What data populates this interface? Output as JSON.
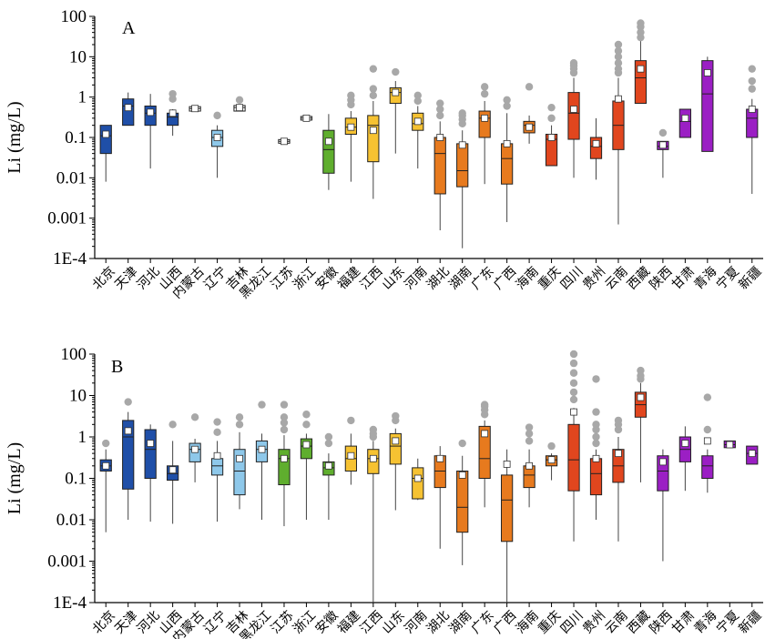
{
  "chart_data": [
    {
      "type": "box",
      "panel_label": "A",
      "ylabel": "Li (mg/L)",
      "yscale": "log",
      "ylim": [
        0.0001,
        100
      ],
      "yticks": [
        "100",
        "10",
        "1",
        "0.1",
        "0.01",
        "0.001",
        "1E-4"
      ],
      "categories": [
        "北京",
        "天津",
        "河北",
        "山西",
        "内蒙古",
        "辽宁",
        "吉林",
        "黑龙江",
        "江苏",
        "浙江",
        "安徽",
        "福建",
        "江西",
        "山东",
        "河南",
        "湖北",
        "湖南",
        "广东",
        "广西",
        "海南",
        "重庆",
        "四川",
        "贵州",
        "云南",
        "西藏",
        "陕西",
        "甘肃",
        "青海",
        "宁夏",
        "新疆"
      ],
      "boxes": [
        {
          "color": "#1f4fa8",
          "min": 0.008,
          "q1": 0.04,
          "median": 0.11,
          "q3": 0.2,
          "max": 0.2,
          "mean": 0.12,
          "outliers": []
        },
        {
          "color": "#1f4fa8",
          "min": 0.2,
          "q1": 0.2,
          "median": 0.6,
          "q3": 0.9,
          "max": 1.3,
          "mean": 0.55,
          "outliers": []
        },
        {
          "color": "#1f4fa8",
          "min": 0.017,
          "q1": 0.2,
          "median": 0.4,
          "q3": 0.6,
          "max": 1.2,
          "mean": 0.42,
          "outliers": []
        },
        {
          "color": "#1f4fa8",
          "min": 0.11,
          "q1": 0.2,
          "median": 0.32,
          "q3": 0.4,
          "max": 0.5,
          "mean": 0.4,
          "outliers": [
            0.9,
            1.2
          ]
        },
        {
          "color": "#ffffff",
          "min": 0.45,
          "q1": 0.45,
          "median": 0.52,
          "q3": 0.58,
          "max": 0.58,
          "mean": 0.52,
          "outliers": []
        },
        {
          "color": "#8ec8ea",
          "min": 0.01,
          "q1": 0.06,
          "median": 0.1,
          "q3": 0.15,
          "max": 0.2,
          "mean": 0.1,
          "outliers": [
            0.35
          ]
        },
        {
          "color": "#ffffff",
          "min": 0.45,
          "q1": 0.45,
          "median": 0.55,
          "q3": 0.62,
          "max": 0.62,
          "mean": 0.55,
          "outliers": [
            0.85
          ]
        },
        {
          "color": null,
          "min": null,
          "q1": null,
          "median": null,
          "q3": null,
          "max": null,
          "mean": null,
          "outliers": []
        },
        {
          "color": "#ffffff",
          "min": 0.075,
          "q1": 0.075,
          "median": 0.08,
          "q3": 0.085,
          "max": 0.085,
          "mean": 0.08,
          "outliers": []
        },
        {
          "color": "#ffffff",
          "min": 0.27,
          "q1": 0.27,
          "median": 0.3,
          "q3": 0.33,
          "max": 0.33,
          "mean": 0.3,
          "outliers": []
        },
        {
          "color": "#5fae2e",
          "min": 0.005,
          "q1": 0.013,
          "median": 0.05,
          "q3": 0.15,
          "max": 0.38,
          "mean": 0.08,
          "outliers": []
        },
        {
          "color": "#f6c232",
          "min": 0.008,
          "q1": 0.12,
          "median": 0.18,
          "q3": 0.3,
          "max": 0.45,
          "mean": 0.18,
          "outliers": [
            0.65,
            0.85,
            1.1
          ]
        },
        {
          "color": "#f6c232",
          "min": 0.003,
          "q1": 0.025,
          "median": 0.2,
          "q3": 0.35,
          "max": 0.8,
          "mean": 0.15,
          "outliers": [
            1.1,
            1.6,
            5
          ]
        },
        {
          "color": "#f6c232",
          "min": 0.04,
          "q1": 0.7,
          "median": 1.3,
          "q3": 1.7,
          "max": 2.5,
          "mean": 1.3,
          "outliers": [
            4.2
          ]
        },
        {
          "color": "#f6c232",
          "min": 0.017,
          "q1": 0.15,
          "median": 0.22,
          "q3": 0.4,
          "max": 0.6,
          "mean": 0.25,
          "outliers": [
            0.8,
            1.1
          ]
        },
        {
          "color": "#e77a1e",
          "min": 0.0005,
          "q1": 0.004,
          "median": 0.04,
          "q3": 0.1,
          "max": 0.25,
          "mean": 0.1,
          "outliers": [
            0.35,
            0.5,
            0.7
          ]
        },
        {
          "color": "#e77a1e",
          "min": 0.00018,
          "q1": 0.006,
          "median": 0.015,
          "q3": 0.07,
          "max": 0.15,
          "mean": 0.065,
          "outliers": [
            0.22,
            0.28,
            0.35,
            0.4
          ]
        },
        {
          "color": "#e77a1e",
          "min": 0.007,
          "q1": 0.1,
          "median": 0.3,
          "q3": 0.45,
          "max": 0.8,
          "mean": 0.3,
          "outliers": [
            1.2,
            1.8
          ]
        },
        {
          "color": "#e77a1e",
          "min": 0.0008,
          "q1": 0.007,
          "median": 0.03,
          "q3": 0.07,
          "max": 0.4,
          "mean": 0.07,
          "outliers": [
            0.6,
            0.85
          ]
        },
        {
          "color": "#e77a1e",
          "min": 0.07,
          "q1": 0.13,
          "median": 0.2,
          "q3": 0.25,
          "max": 0.35,
          "mean": 0.18,
          "outliers": [
            1.8
          ]
        },
        {
          "color": "#e1461e",
          "min": 0.02,
          "q1": 0.02,
          "median": 0.09,
          "q3": 0.12,
          "max": 0.2,
          "mean": 0.1,
          "outliers": [
            0.3,
            0.55
          ]
        },
        {
          "color": "#e1461e",
          "min": 0.01,
          "q1": 0.09,
          "median": 0.4,
          "q3": 1.3,
          "max": 3,
          "mean": 0.5,
          "outliers": [
            4,
            5,
            6,
            7
          ]
        },
        {
          "color": "#e1461e",
          "min": 0.009,
          "q1": 0.03,
          "median": 0.06,
          "q3": 0.1,
          "max": 0.3,
          "mean": 0.07,
          "outliers": []
        },
        {
          "color": "#e1461e",
          "min": 0.0007,
          "q1": 0.05,
          "median": 0.2,
          "q3": 0.8,
          "max": 3,
          "mean": 0.9,
          "outliers": [
            4,
            5,
            7,
            10,
            14,
            20
          ]
        },
        {
          "color": "#e1461e",
          "min": 0.7,
          "q1": 0.7,
          "median": 3,
          "q3": 8,
          "max": 25,
          "mean": 5,
          "outliers": [
            30,
            40,
            55,
            68
          ]
        },
        {
          "color": "#9b1fc4",
          "min": 0.01,
          "q1": 0.05,
          "median": 0.06,
          "q3": 0.08,
          "max": 0.08,
          "mean": 0.065,
          "outliers": [
            0.13
          ]
        },
        {
          "color": "#9b1fc4",
          "min": 0.1,
          "q1": 0.1,
          "median": 0.25,
          "q3": 0.5,
          "max": 0.5,
          "mean": 0.3,
          "outliers": []
        },
        {
          "color": "#9b1fc4",
          "min": 0.045,
          "q1": 0.045,
          "median": 1.2,
          "q3": 8,
          "max": 10,
          "mean": 4,
          "outliers": []
        },
        {
          "color": null,
          "min": null,
          "q1": null,
          "median": null,
          "q3": null,
          "max": null,
          "mean": null,
          "outliers": []
        },
        {
          "color": "#9b1fc4",
          "min": 0.004,
          "q1": 0.1,
          "median": 0.3,
          "q3": 0.5,
          "max": 0.9,
          "mean": 0.5,
          "outliers": [
            1.6,
            2.5,
            5
          ]
        }
      ]
    },
    {
      "type": "box",
      "panel_label": "B",
      "ylabel": "Li (mg/L)",
      "yscale": "log",
      "ylim": [
        0.0001,
        100
      ],
      "yticks": [
        "100",
        "10",
        "1",
        "0.1",
        "0.01",
        "0.001",
        "1E-4"
      ],
      "categories": [
        "北京",
        "天津",
        "河北",
        "山西",
        "内蒙古",
        "辽宁",
        "吉林",
        "黑龙江",
        "江苏",
        "浙江",
        "安徽",
        "福建",
        "江西",
        "山东",
        "河南",
        "湖北",
        "湖南",
        "广东",
        "广西",
        "海南",
        "重庆",
        "四川",
        "贵州",
        "云南",
        "西藏",
        "陕西",
        "甘肃",
        "青海",
        "宁夏",
        "新疆"
      ],
      "boxes": [
        {
          "color": "#1f4fa8",
          "min": 0.005,
          "q1": 0.15,
          "median": 0.2,
          "q3": 0.28,
          "max": 0.5,
          "mean": 0.2,
          "outliers": [
            0.7
          ]
        },
        {
          "color": "#1f4fa8",
          "min": 0.01,
          "q1": 0.055,
          "median": 1,
          "q3": 2.5,
          "max": 4,
          "mean": 1.4,
          "outliers": [
            7
          ]
        },
        {
          "color": "#1f4fa8",
          "min": 0.009,
          "q1": 0.1,
          "median": 0.5,
          "q3": 1.5,
          "max": 2,
          "mean": 0.7,
          "outliers": []
        },
        {
          "color": "#1f4fa8",
          "min": 0.008,
          "q1": 0.09,
          "median": 0.13,
          "q3": 0.2,
          "max": 0.8,
          "mean": 0.16,
          "outliers": [
            2
          ]
        },
        {
          "color": "#8ec8ea",
          "min": 0.08,
          "q1": 0.25,
          "median": 0.5,
          "q3": 0.7,
          "max": 0.9,
          "mean": 0.5,
          "outliers": [
            3
          ]
        },
        {
          "color": "#8ec8ea",
          "min": 0.009,
          "q1": 0.12,
          "median": 0.2,
          "q3": 0.3,
          "max": 0.8,
          "mean": 0.35,
          "outliers": [
            1.3,
            2.3
          ]
        },
        {
          "color": "#8ec8ea",
          "min": 0.018,
          "q1": 0.04,
          "median": 0.15,
          "q3": 0.5,
          "max": 1.3,
          "mean": 0.3,
          "outliers": [
            2,
            3
          ]
        },
        {
          "color": "#8ec8ea",
          "min": 0.01,
          "q1": 0.25,
          "median": 0.5,
          "q3": 0.8,
          "max": 1.2,
          "mean": 0.5,
          "outliers": [
            6
          ]
        },
        {
          "color": "#5fae2e",
          "min": 0.007,
          "q1": 0.07,
          "median": 0.3,
          "q3": 0.5,
          "max": 1.1,
          "mean": 0.3,
          "outliers": [
            1.5,
            2.2,
            3,
            6
          ]
        },
        {
          "color": "#5fae2e",
          "min": 0.01,
          "q1": 0.3,
          "median": 0.6,
          "q3": 0.9,
          "max": 1.2,
          "mean": 0.65,
          "outliers": [
            2,
            3.5
          ]
        },
        {
          "color": "#5fae2e",
          "min": 0.01,
          "q1": 0.12,
          "median": 0.18,
          "q3": 0.25,
          "max": 0.4,
          "mean": 0.2,
          "outliers": [
            0.7,
            1
          ]
        },
        {
          "color": "#f6c232",
          "min": 0.07,
          "q1": 0.15,
          "median": 0.3,
          "q3": 0.6,
          "max": 1.2,
          "mean": 0.35,
          "outliers": [
            2.5
          ]
        },
        {
          "color": "#f6c232",
          "min": 0.0001,
          "q1": 0.13,
          "median": 0.3,
          "q3": 0.5,
          "max": 0.8,
          "mean": 0.3,
          "outliers": [
            1,
            1.2,
            1.5
          ]
        },
        {
          "color": "#f6c232",
          "min": 0.017,
          "q1": 0.22,
          "median": 0.6,
          "q3": 1.2,
          "max": 1.6,
          "mean": 0.8,
          "outliers": [
            2.5,
            3.2
          ]
        },
        {
          "color": "#f6c232",
          "min": 0.03,
          "q1": 0.032,
          "median": 0.1,
          "q3": 0.18,
          "max": 0.3,
          "mean": 0.1,
          "outliers": []
        },
        {
          "color": "#e77a1e",
          "min": 0.002,
          "q1": 0.06,
          "median": 0.15,
          "q3": 0.35,
          "max": 0.6,
          "mean": 0.3,
          "outliers": []
        },
        {
          "color": "#e77a1e",
          "min": 0.0008,
          "q1": 0.005,
          "median": 0.02,
          "q3": 0.15,
          "max": 0.35,
          "mean": 0.12,
          "outliers": [
            0.7
          ]
        },
        {
          "color": "#e77a1e",
          "min": 0.02,
          "q1": 0.1,
          "median": 0.3,
          "q3": 1.8,
          "max": 2.5,
          "mean": 1.2,
          "outliers": [
            3.5,
            4.5,
            5.5,
            6
          ]
        },
        {
          "color": "#e77a1e",
          "min": 0.0001,
          "q1": 0.003,
          "median": 0.03,
          "q3": 0.12,
          "max": 0.5,
          "mean": 0.22,
          "outliers": []
        },
        {
          "color": "#e77a1e",
          "min": 0.02,
          "q1": 0.06,
          "median": 0.12,
          "q3": 0.2,
          "max": 0.5,
          "mean": 0.2,
          "outliers": [
            0.8,
            1.2,
            1.7
          ]
        },
        {
          "color": "#e77a1e",
          "min": 0.09,
          "q1": 0.2,
          "median": 0.28,
          "q3": 0.35,
          "max": 0.4,
          "mean": 0.28,
          "outliers": [
            0.6
          ]
        },
        {
          "color": "#e1461e",
          "min": 0.003,
          "q1": 0.05,
          "median": 0.28,
          "q3": 2,
          "max": 5,
          "mean": 4,
          "outliers": [
            8,
            12,
            20,
            35,
            60,
            100
          ]
        },
        {
          "color": "#e1461e",
          "min": 0.01,
          "q1": 0.04,
          "median": 0.13,
          "q3": 0.3,
          "max": 0.5,
          "mean": 0.3,
          "outliers": [
            0.7,
            1,
            1.5,
            2,
            4,
            25
          ]
        },
        {
          "color": "#e1461e",
          "min": 0.003,
          "q1": 0.08,
          "median": 0.2,
          "q3": 0.5,
          "max": 1,
          "mean": 0.4,
          "outliers": [
            1.5,
            2,
            2.5
          ]
        },
        {
          "color": "#e1461e",
          "min": 0.08,
          "q1": 3,
          "median": 6,
          "q3": 12,
          "max": 20,
          "mean": 9,
          "outliers": [
            25,
            30,
            40
          ]
        },
        {
          "color": "#9b1fc4",
          "min": 0.001,
          "q1": 0.05,
          "median": 0.15,
          "q3": 0.35,
          "max": 0.5,
          "mean": 0.25,
          "outliers": []
        },
        {
          "color": "#9b1fc4",
          "min": 0.05,
          "q1": 0.25,
          "median": 0.5,
          "q3": 1,
          "max": 1.8,
          "mean": 0.7,
          "outliers": []
        },
        {
          "color": "#9b1fc4",
          "min": 0.045,
          "q1": 0.1,
          "median": 0.2,
          "q3": 0.35,
          "max": 0.5,
          "mean": 0.8,
          "outliers": [
            1.5,
            9
          ]
        },
        {
          "color": "#9b1fc4",
          "min": 0.55,
          "q1": 0.55,
          "median": 0.65,
          "q3": 0.8,
          "max": 0.8,
          "mean": 0.65,
          "outliers": []
        },
        {
          "color": "#9b1fc4",
          "min": 0.22,
          "q1": 0.22,
          "median": 0.4,
          "q3": 0.6,
          "max": 0.6,
          "mean": 0.4,
          "outliers": []
        }
      ]
    }
  ]
}
